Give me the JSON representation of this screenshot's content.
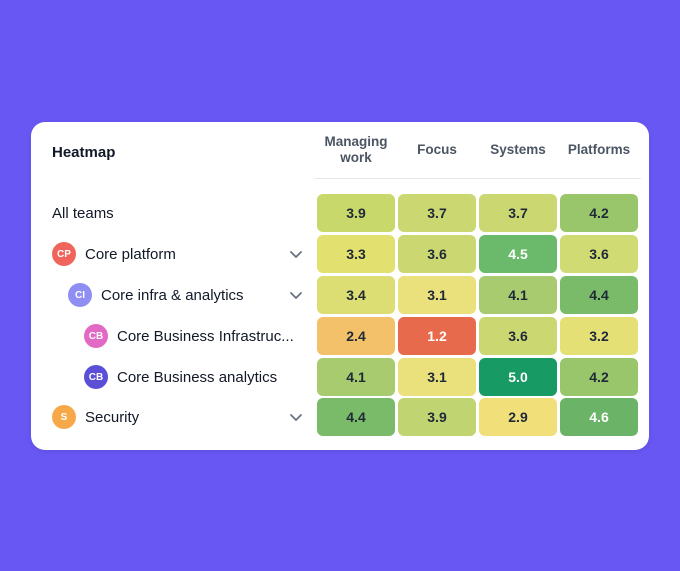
{
  "card": {
    "title": "Heatmap",
    "columns": [
      "Managing work",
      "Focus",
      "Systems",
      "Platforms"
    ]
  },
  "rows": [
    {
      "label": "All teams",
      "values": [
        "3.9",
        "3.7",
        "3.7",
        "4.2"
      ],
      "colors": [
        "#c9d86b",
        "#cbd771",
        "#cbd771",
        "#99c56b"
      ]
    },
    {
      "label": "Core platform",
      "initials": "CP",
      "avatar_color": "#f0655b",
      "expandable": true,
      "values": [
        "3.3",
        "3.6",
        "4.5",
        "3.6"
      ],
      "colors": [
        "#e2e06f",
        "#cbd771",
        "#6bb96a",
        "#d1db74"
      ]
    },
    {
      "label": "Core infra & analytics",
      "initials": "CI",
      "avatar_color": "#8f8ff3",
      "expandable": true,
      "values": [
        "3.4",
        "3.1",
        "4.1",
        "4.4"
      ],
      "colors": [
        "#dcdd72",
        "#ebe17c",
        "#a8cb6f",
        "#7abb69"
      ]
    },
    {
      "label": "Core Business Infrastruc...",
      "initials": "CB",
      "avatar_color": "#e26ac4",
      "expandable": false,
      "values": [
        "2.4",
        "1.2",
        "3.6",
        "3.2"
      ],
      "colors": [
        "#f2c16a",
        "#e86a4d",
        "#cbd771",
        "#e5e076"
      ]
    },
    {
      "label": "Core Business analytics",
      "initials": "CB",
      "avatar_color": "#5a4fd6",
      "expandable": false,
      "values": [
        "4.1",
        "3.1",
        "5.0",
        "4.2"
      ],
      "colors": [
        "#a8cb6f",
        "#ebe17c",
        "#189a64",
        "#99c56b"
      ]
    },
    {
      "label": "Security",
      "initials": "S",
      "avatar_color": "#f7a94a",
      "expandable": true,
      "values": [
        "4.4",
        "3.9",
        "2.9",
        "4.6"
      ],
      "colors": [
        "#7abb69",
        "#c0d471",
        "#f1df7a",
        "#6ab367"
      ]
    }
  ],
  "text_colors": {
    "dark": "#1f2937",
    "light": "#ffffff"
  }
}
